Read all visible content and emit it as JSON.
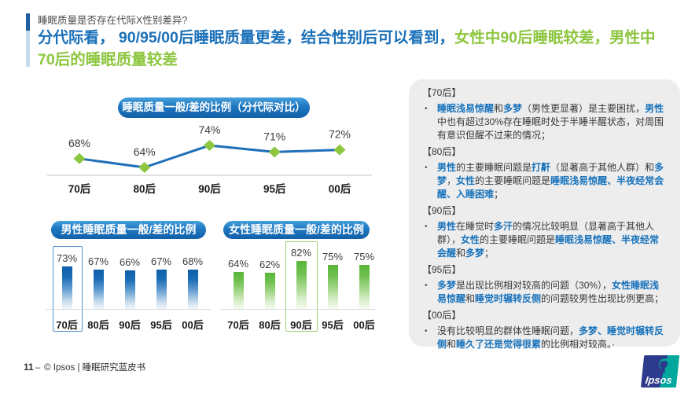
{
  "page": {
    "kicker": "睡眠质量是否存在代际X性别差异?",
    "title": {
      "blue": "分代际看， 90/95/00后睡眠质量更差，结合性别后可以看到，",
      "green_line1": "女性中90后睡眠较差，男性中",
      "green_line2": "70后的睡眠质量较差"
    },
    "footer": {
      "page_number": "11",
      "separator": "–",
      "credit": "© Ipsos | 睡眠研究蓝皮书"
    },
    "logo": {
      "label": "Ipsos"
    }
  },
  "colors": {
    "title_blue": "#1a70b8",
    "highlight_green": "#8dc63f",
    "pill_blue": "#1b72bb",
    "line_blue": "#1e6fb8",
    "marker_green": "#8dc63f",
    "bar_blue": "#0f63ae",
    "bar_green": "#62bd41",
    "panel_bg": "#ededee",
    "panel_em_blue": "#1973bb"
  },
  "chart_data": [
    {
      "type": "line",
      "title": "睡眠质量一般/差的比例（分代际对比）",
      "categories": [
        "70后",
        "80后",
        "90后",
        "95后",
        "00后"
      ],
      "values": [
        68,
        64,
        74,
        71,
        72
      ],
      "unit": "%",
      "ylim": [
        60,
        78
      ],
      "grid": false,
      "line_color": "#1e6fb8",
      "marker": "diamond",
      "marker_color": "#8dc63f"
    },
    {
      "type": "bar",
      "title": "男性睡眠质量一般/差的比例",
      "categories": [
        "70后",
        "80后",
        "90后",
        "95后",
        "00后"
      ],
      "values": [
        73,
        67,
        66,
        67,
        68
      ],
      "unit": "%",
      "highlight_index": 0,
      "bar_color": "#0f63ae"
    },
    {
      "type": "bar",
      "title": "女性睡眠质量一般/差的比例",
      "categories": [
        "70后",
        "80后",
        "90后",
        "95后",
        "00后"
      ],
      "values": [
        64,
        62,
        82,
        75,
        75
      ],
      "unit": "%",
      "highlight_index": 2,
      "bar_color": "#62bd41"
    }
  ],
  "panel": {
    "sections": [
      {
        "header": "【70后】",
        "bullets": [
          {
            "segments": [
              {
                "text": "睡眠浅易惊醒",
                "em": true
              },
              {
                "text": "和",
                "em": false
              },
              {
                "text": "多梦",
                "em": true
              },
              {
                "text": "（男性更显著）是主要困扰，",
                "em": false
              },
              {
                "text": "男性",
                "em": true
              },
              {
                "text": "中也有超过30%存在睡眠时处于半睡半醒状态，对周围有意识但醒不过来的情况；",
                "em": false
              }
            ]
          }
        ]
      },
      {
        "header": "【80后】",
        "bullets": [
          {
            "segments": [
              {
                "text": "男性",
                "em": true
              },
              {
                "text": "的主要睡眠问题是",
                "em": false
              },
              {
                "text": "打鼾",
                "em": true
              },
              {
                "text": "（显著高于其他人群）和",
                "em": false
              },
              {
                "text": "多梦",
                "em": true
              },
              {
                "text": "，",
                "em": false
              },
              {
                "text": "女性",
                "em": true
              },
              {
                "text": "的主要睡眠问题是",
                "em": false
              },
              {
                "text": "睡眠浅易惊醒、半夜经常会醒、入睡困难",
                "em": true
              },
              {
                "text": "；",
                "em": false
              }
            ]
          }
        ]
      },
      {
        "header": "【90后】",
        "bullets": [
          {
            "segments": [
              {
                "text": "男性",
                "em": true
              },
              {
                "text": "在睡觉时",
                "em": false
              },
              {
                "text": "多汗",
                "em": true
              },
              {
                "text": "的情况比较明显（显著高于其他人群），",
                "em": false
              },
              {
                "text": "女性",
                "em": true
              },
              {
                "text": "的主要睡眠问题是",
                "em": false
              },
              {
                "text": "睡眠浅易惊醒、半夜经常会醒",
                "em": true
              },
              {
                "text": "和",
                "em": false
              },
              {
                "text": "多梦",
                "em": true
              },
              {
                "text": "；",
                "em": false
              }
            ]
          }
        ]
      },
      {
        "header": "【95后】",
        "bullets": [
          {
            "segments": [
              {
                "text": "多梦",
                "em": true
              },
              {
                "text": "是出现比例相对较高的问题（30%），",
                "em": false
              },
              {
                "text": "女性睡眠浅易惊醒",
                "em": true
              },
              {
                "text": "和",
                "em": false
              },
              {
                "text": "睡觉时辗转反侧",
                "em": true
              },
              {
                "text": "的问题较男性出现比例更高；",
                "em": false
              }
            ]
          }
        ]
      },
      {
        "header": "【00后】",
        "bullets": [
          {
            "segments": [
              {
                "text": "没有比较明显的群体性睡眠问题，",
                "em": false
              },
              {
                "text": "多梦、睡觉时辗转反侧",
                "em": true
              },
              {
                "text": "和",
                "em": false
              },
              {
                "text": "睡久了还是觉得很累",
                "em": true
              },
              {
                "text": "的比例相对较高。·",
                "em": false
              }
            ]
          }
        ]
      }
    ]
  }
}
